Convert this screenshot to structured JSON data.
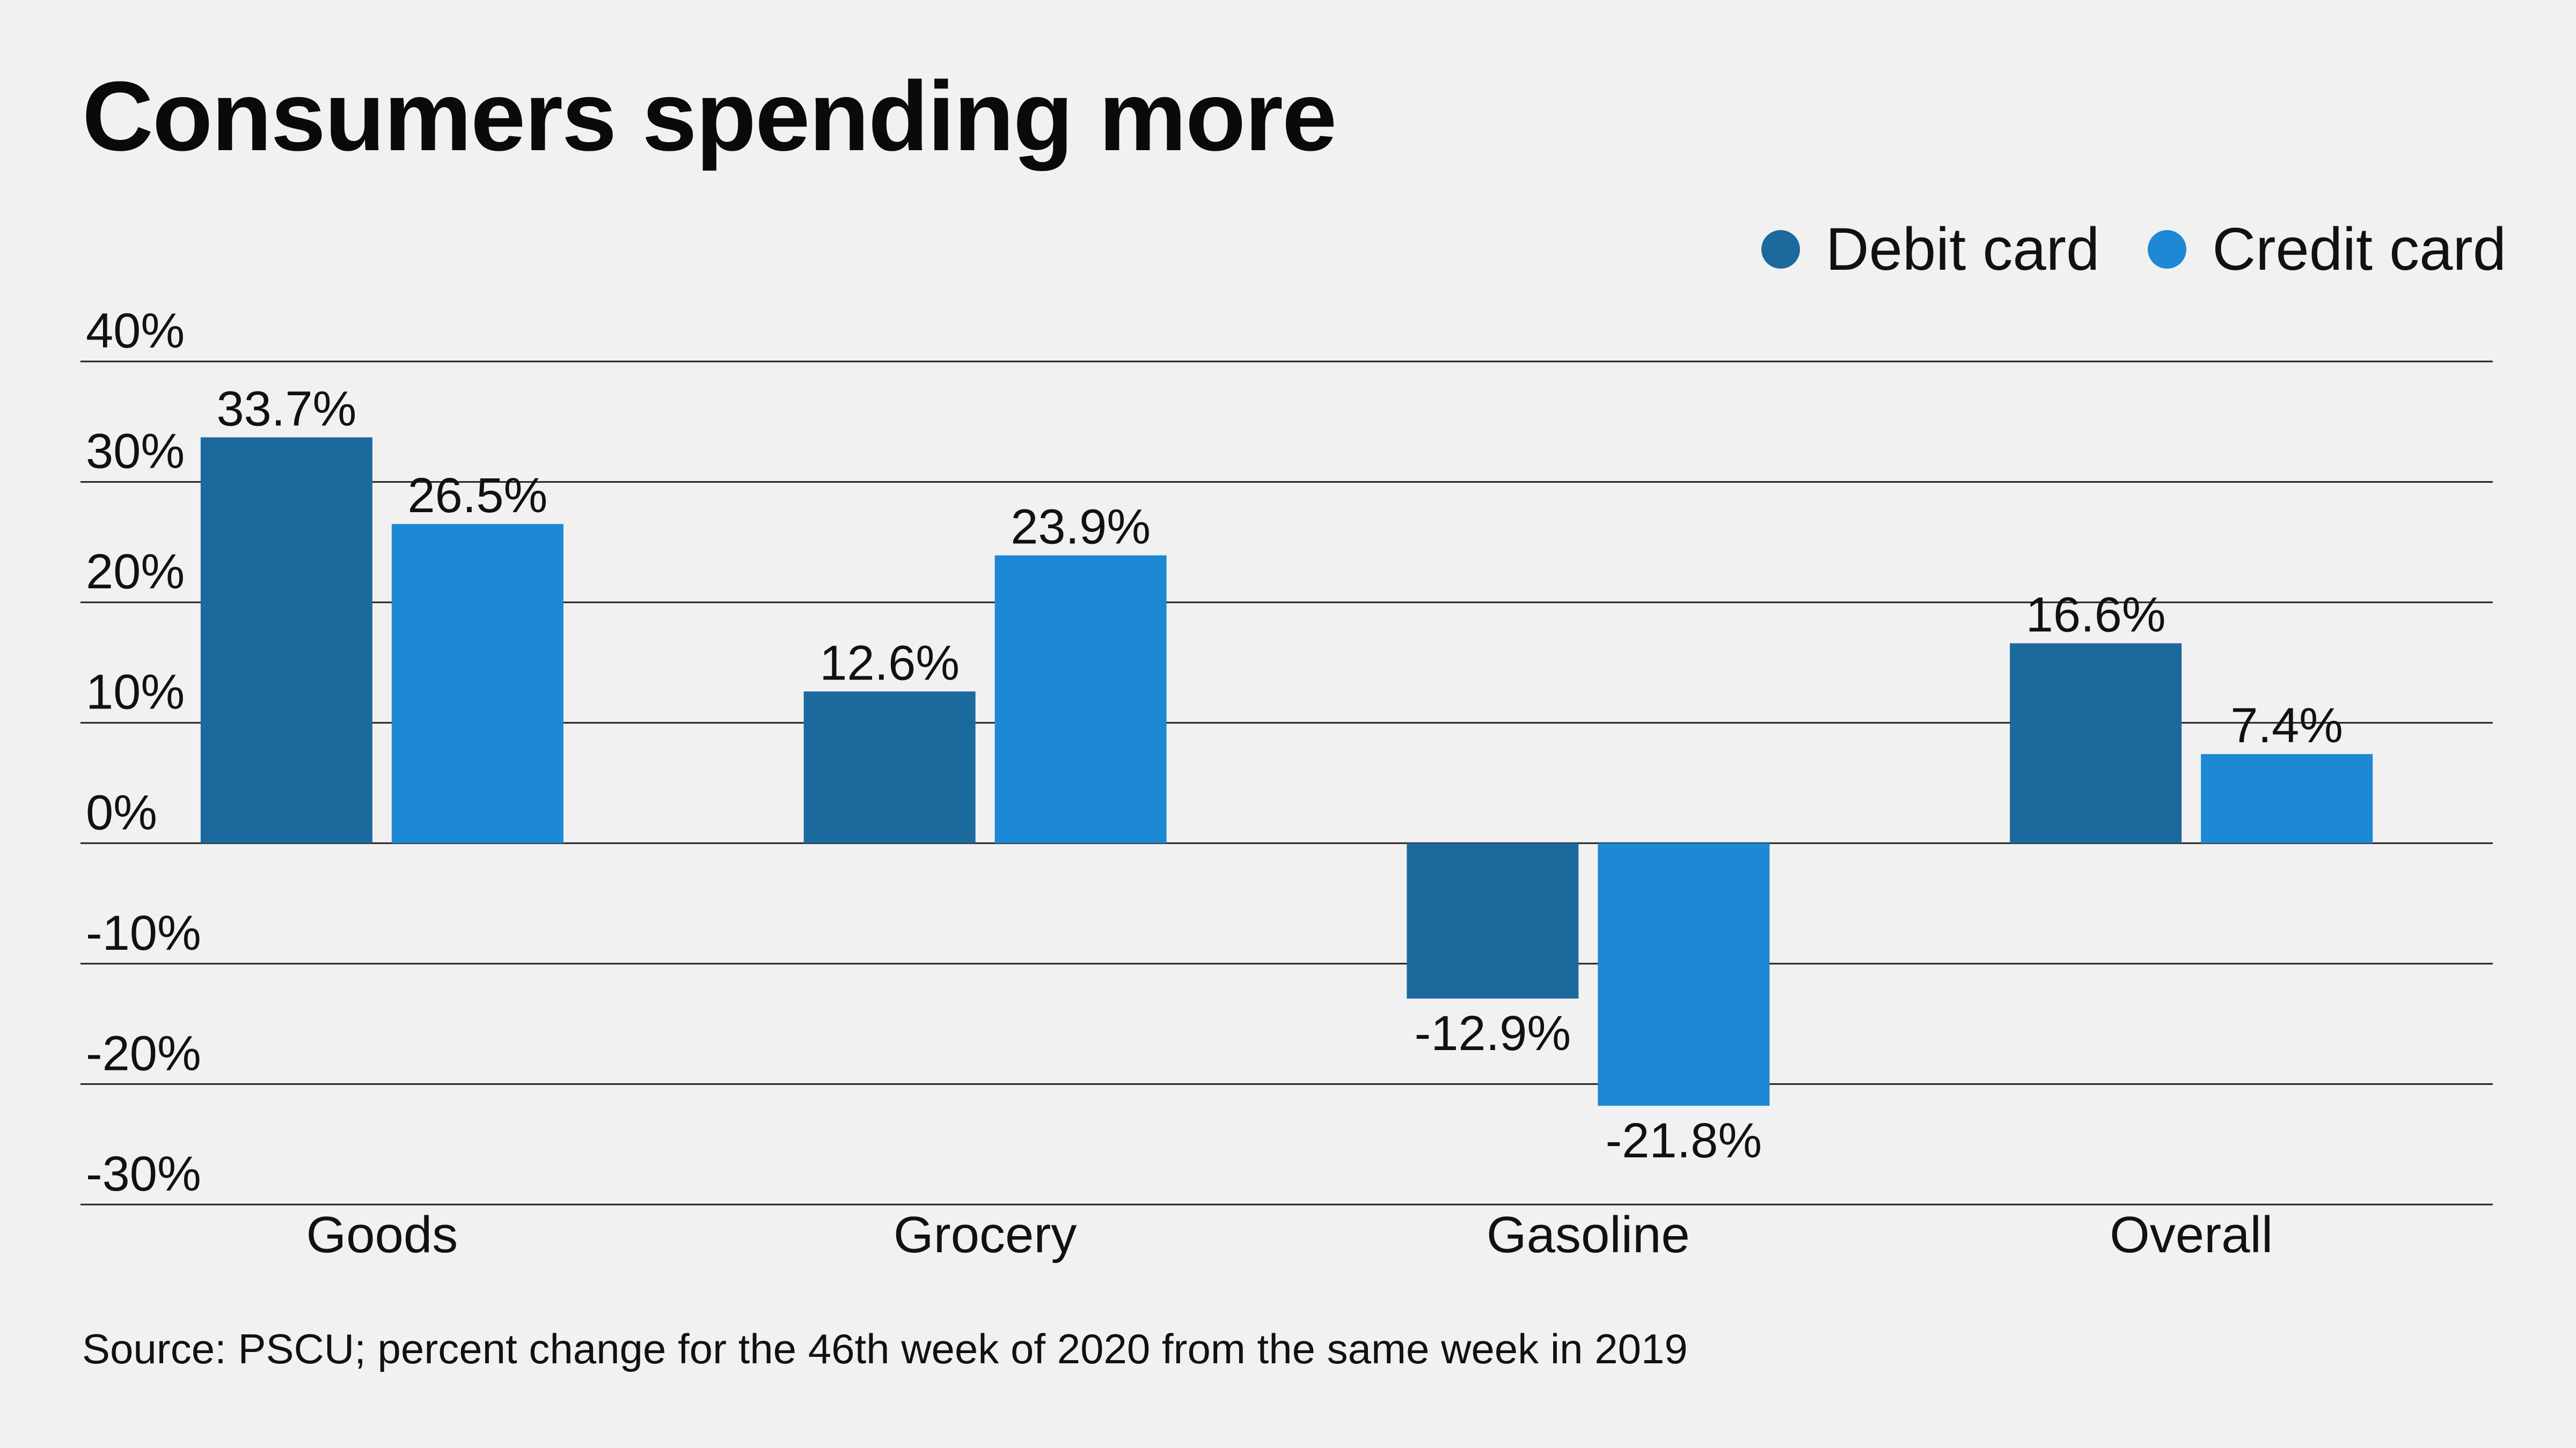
{
  "title": "Consumers spending more",
  "legend": [
    {
      "label": "Debit card",
      "color": "#1c699e"
    },
    {
      "label": "Credit card",
      "color": "#1d88d3"
    }
  ],
  "source": "Source: PSCU; percent change for the 46th week of 2020 from the same week in 2019",
  "chart_data": {
    "type": "bar",
    "title": "Consumers spending more",
    "xlabel": "",
    "ylabel": "",
    "categories": [
      "Goods",
      "Grocery",
      "Gasoline",
      "Overall"
    ],
    "series": [
      {
        "name": "Debit card",
        "color": "#1c699e",
        "values": [
          33.7,
          12.6,
          -12.9,
          16.6
        ],
        "labels": [
          "33.7%",
          "12.6%",
          "-12.9%",
          "16.6%"
        ]
      },
      {
        "name": "Credit card",
        "color": "#1d88d3",
        "values": [
          26.5,
          23.9,
          -21.8,
          7.4
        ],
        "labels": [
          "26.5%",
          "23.9%",
          "-21.8%",
          "7.4%"
        ]
      }
    ],
    "ylim": [
      -30,
      40
    ],
    "yticks": [
      40,
      30,
      20,
      10,
      0,
      -10,
      -20,
      -30
    ],
    "ytick_labels": [
      "40%",
      "30%",
      "20%",
      "10%",
      "0%",
      "-10%",
      "-20%",
      "-30%"
    ],
    "grid": true,
    "legend_position": "top-right"
  }
}
